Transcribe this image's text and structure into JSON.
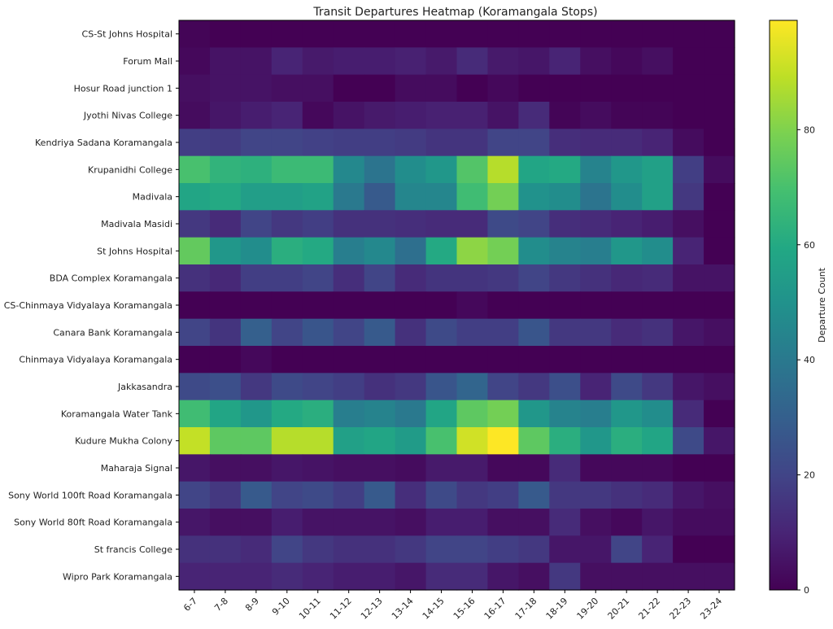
{
  "chart_data": {
    "type": "heatmap",
    "title": "Transit Departures Heatmap (Koramangala Stops)",
    "xlabel": "",
    "ylabel": "",
    "colorbar_label": "Departure Count",
    "colormap": "viridis",
    "vmin": 0,
    "vmax": 99,
    "colorbar_ticks": [
      0,
      20,
      40,
      60,
      80
    ],
    "x_categories": [
      "6-7",
      "7-8",
      "8-9",
      "9-10",
      "10-11",
      "11-12",
      "12-13",
      "13-14",
      "14-15",
      "15-16",
      "16-17",
      "17-18",
      "18-19",
      "19-20",
      "20-21",
      "21-22",
      "22-23",
      "23-24"
    ],
    "y_categories": [
      "CS-St Johns Hospital",
      "Forum Mall",
      "Hosur Road junction 1",
      "Jyothi Nivas College",
      "Kendriya Sadana Koramangala",
      "Krupanidhi College",
      "Madivala",
      "Madivala Masidi",
      "St Johns Hospital",
      "BDA Complex Koramangala",
      "CS-Chinmaya Vidyalaya Koramangala",
      "Canara Bank Koramangala",
      "Chinmaya Vidyalaya Koramangala",
      "Jakkasandra",
      "Koramangala Water Tank",
      "Kudure Mukha Colony",
      "Maharaja Signal",
      "Sony World 100ft Road Koramangala",
      "Sony World 80ft Road Koramangala",
      "St francis College",
      "Wipro Park Koramangala"
    ],
    "values": [
      [
        1,
        0,
        0,
        0,
        0,
        0,
        0,
        0,
        0,
        0,
        0,
        0,
        0,
        0,
        0,
        0,
        0,
        0
      ],
      [
        2,
        5,
        5,
        10,
        7,
        8,
        8,
        9,
        7,
        12,
        7,
        6,
        10,
        4,
        2,
        4,
        0,
        0
      ],
      [
        4,
        5,
        5,
        4,
        4,
        0,
        0,
        3,
        3,
        0,
        2,
        0,
        0,
        0,
        0,
        0,
        0,
        0
      ],
      [
        3,
        6,
        8,
        10,
        2,
        5,
        7,
        8,
        9,
        9,
        5,
        12,
        1,
        3,
        1,
        1,
        0,
        0
      ],
      [
        18,
        17,
        20,
        20,
        19,
        18,
        18,
        17,
        15,
        15,
        20,
        20,
        13,
        12,
        12,
        10,
        3,
        0
      ],
      [
        70,
        64,
        63,
        67,
        67,
        46,
        38,
        48,
        52,
        72,
        88,
        58,
        60,
        44,
        52,
        56,
        18,
        3
      ],
      [
        58,
        60,
        55,
        55,
        57,
        40,
        28,
        45,
        45,
        68,
        78,
        50,
        48,
        38,
        48,
        56,
        16,
        0
      ],
      [
        16,
        12,
        20,
        16,
        18,
        14,
        14,
        13,
        12,
        12,
        22,
        20,
        13,
        12,
        10,
        8,
        4,
        0
      ],
      [
        75,
        52,
        48,
        62,
        60,
        42,
        46,
        36,
        60,
        82,
        78,
        48,
        44,
        42,
        52,
        48,
        10,
        0
      ],
      [
        14,
        11,
        18,
        18,
        20,
        13,
        20,
        12,
        15,
        15,
        16,
        20,
        16,
        14,
        11,
        12,
        5,
        5
      ],
      [
        0,
        0,
        0,
        0,
        0,
        0,
        0,
        0,
        0,
        2,
        0,
        0,
        0,
        0,
        0,
        0,
        0,
        0
      ],
      [
        20,
        15,
        30,
        20,
        26,
        20,
        28,
        14,
        22,
        18,
        18,
        26,
        16,
        16,
        12,
        14,
        6,
        4
      ],
      [
        0,
        0,
        2,
        0,
        0,
        0,
        0,
        0,
        0,
        0,
        0,
        0,
        0,
        0,
        0,
        0,
        0,
        0
      ],
      [
        22,
        24,
        16,
        22,
        20,
        18,
        14,
        16,
        26,
        32,
        20,
        16,
        24,
        10,
        22,
        16,
        6,
        4
      ],
      [
        68,
        58,
        52,
        60,
        62,
        42,
        44,
        40,
        58,
        74,
        78,
        52,
        44,
        42,
        52,
        48,
        12,
        0
      ],
      [
        90,
        74,
        74,
        88,
        88,
        56,
        58,
        54,
        70,
        92,
        99,
        74,
        62,
        52,
        62,
        58,
        22,
        6
      ],
      [
        6,
        4,
        4,
        6,
        5,
        4,
        4,
        3,
        7,
        7,
        2,
        2,
        12,
        2,
        2,
        2,
        0,
        0
      ],
      [
        20,
        16,
        28,
        20,
        22,
        18,
        28,
        13,
        22,
        16,
        18,
        28,
        16,
        16,
        14,
        12,
        6,
        4
      ],
      [
        6,
        4,
        4,
        8,
        5,
        5,
        5,
        4,
        8,
        8,
        4,
        4,
        12,
        4,
        2,
        6,
        3,
        3
      ],
      [
        14,
        14,
        12,
        20,
        16,
        14,
        14,
        16,
        20,
        20,
        18,
        16,
        6,
        6,
        20,
        10,
        0,
        0
      ],
      [
        10,
        10,
        10,
        12,
        10,
        8,
        8,
        6,
        12,
        12,
        6,
        4,
        16,
        4,
        4,
        4,
        4,
        4
      ]
    ],
    "grid": false,
    "legend": "colorbar-right"
  }
}
